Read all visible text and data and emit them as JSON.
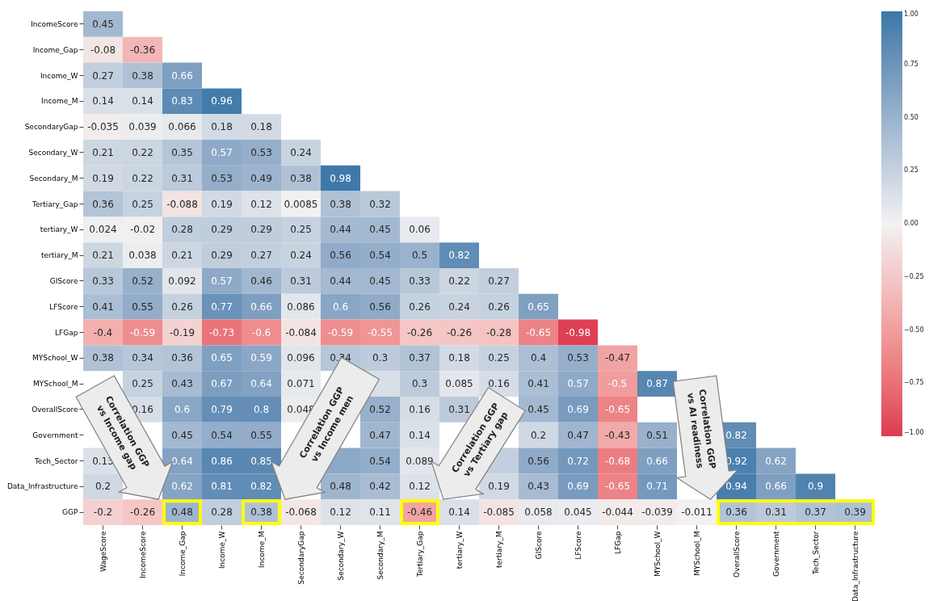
{
  "chart_data": {
    "type": "heatmap",
    "categories": [
      "WageScore",
      "IncomeScore",
      "Income_Gap",
      "Income_W",
      "Income_M",
      "SecondaryGap",
      "Secondary_W",
      "Secondary_M",
      "Tertiary_Gap",
      "tertiary_W",
      "tertiary_M",
      "GIScore",
      "LFScore",
      "LFGap",
      "MYSchool_W",
      "MYSchool_M",
      "OverallScore",
      "Government",
      "Tech_Sector",
      "Data_Infrastructure"
    ],
    "y_categories": [
      "IncomeScore",
      "Income_Gap",
      "Income_W",
      "Income_M",
      "SecondaryGap",
      "Secondary_W",
      "Secondary_M",
      "Tertiary_Gap",
      "tertiary_W",
      "tertiary_M",
      "GIScore",
      "LFScore",
      "LFGap",
      "MYSchool_W",
      "MYSchool_M",
      "OverallScore",
      "Government",
      "Tech_Sector",
      "Data_Infrastructure",
      "GGP"
    ],
    "cells": [
      [
        0.45,
        null,
        null,
        null,
        null,
        null,
        null,
        null,
        null,
        null,
        null,
        null,
        null,
        null,
        null,
        null,
        null,
        null,
        null,
        null
      ],
      [
        -0.08,
        -0.36,
        null,
        null,
        null,
        null,
        null,
        null,
        null,
        null,
        null,
        null,
        null,
        null,
        null,
        null,
        null,
        null,
        null,
        null
      ],
      [
        0.27,
        0.38,
        0.66,
        null,
        null,
        null,
        null,
        null,
        null,
        null,
        null,
        null,
        null,
        null,
        null,
        null,
        null,
        null,
        null,
        null
      ],
      [
        0.14,
        0.14,
        0.83,
        0.96,
        null,
        null,
        null,
        null,
        null,
        null,
        null,
        null,
        null,
        null,
        null,
        null,
        null,
        null,
        null,
        null
      ],
      [
        -0.035,
        0.039,
        0.066,
        0.18,
        0.18,
        null,
        null,
        null,
        null,
        null,
        null,
        null,
        null,
        null,
        null,
        null,
        null,
        null,
        null,
        null
      ],
      [
        0.21,
        0.22,
        0.35,
        0.57,
        0.53,
        0.24,
        null,
        null,
        null,
        null,
        null,
        null,
        null,
        null,
        null,
        null,
        null,
        null,
        null,
        null
      ],
      [
        0.19,
        0.22,
        0.31,
        0.53,
        0.49,
        0.38,
        0.98,
        null,
        null,
        null,
        null,
        null,
        null,
        null,
        null,
        null,
        null,
        null,
        null,
        null
      ],
      [
        0.36,
        0.25,
        -0.088,
        0.19,
        0.12,
        0.0085,
        0.38,
        0.32,
        null,
        null,
        null,
        null,
        null,
        null,
        null,
        null,
        null,
        null,
        null,
        null
      ],
      [
        0.024,
        -0.02,
        0.28,
        0.29,
        0.29,
        0.25,
        0.44,
        0.45,
        0.06,
        null,
        null,
        null,
        null,
        null,
        null,
        null,
        null,
        null,
        null,
        null
      ],
      [
        0.21,
        0.038,
        0.21,
        0.29,
        0.27,
        0.24,
        0.56,
        0.54,
        0.5,
        0.82,
        null,
        null,
        null,
        null,
        null,
        null,
        null,
        null,
        null,
        null
      ],
      [
        0.33,
        0.52,
        0.092,
        0.57,
        0.46,
        0.31,
        0.44,
        0.45,
        0.33,
        0.22,
        0.27,
        null,
        null,
        null,
        null,
        null,
        null,
        null,
        null,
        null
      ],
      [
        0.41,
        0.55,
        0.26,
        0.77,
        0.66,
        0.086,
        0.6,
        0.56,
        0.26,
        0.24,
        0.26,
        0.65,
        null,
        null,
        null,
        null,
        null,
        null,
        null,
        null
      ],
      [
        -0.4,
        -0.59,
        -0.19,
        -0.73,
        -0.6,
        -0.084,
        -0.59,
        -0.55,
        -0.26,
        -0.26,
        -0.28,
        -0.65,
        -0.98,
        null,
        null,
        null,
        null,
        null,
        null,
        null
      ],
      [
        0.38,
        0.34,
        0.36,
        0.65,
        0.59,
        0.096,
        0.34,
        0.3,
        0.37,
        0.18,
        0.25,
        0.4,
        0.53,
        -0.47,
        null,
        null,
        null,
        null,
        null,
        null
      ],
      [
        null,
        0.25,
        0.43,
        0.67,
        0.64,
        0.071,
        null,
        0.15,
        0.3,
        0.085,
        0.16,
        0.41,
        0.57,
        -0.5,
        0.87,
        null,
        null,
        null,
        null,
        null
      ],
      [
        null,
        0.16,
        0.6,
        0.79,
        0.8,
        0.048,
        null,
        0.52,
        0.16,
        0.31,
        null,
        0.45,
        0.69,
        -0.65,
        null,
        null,
        null,
        null,
        null,
        null
      ],
      [
        null,
        null,
        0.45,
        0.54,
        0.55,
        null,
        null,
        0.47,
        0.14,
        null,
        null,
        0.2,
        0.47,
        -0.43,
        0.51,
        null,
        0.82,
        null,
        null,
        null
      ],
      [
        0.13,
        null,
        0.64,
        0.86,
        0.85,
        null,
        0.58,
        0.54,
        0.089,
        null,
        0.27,
        0.56,
        0.72,
        -0.68,
        0.66,
        null,
        0.92,
        0.62,
        null,
        null
      ],
      [
        0.2,
        null,
        0.62,
        0.81,
        0.82,
        null,
        0.48,
        0.42,
        0.12,
        null,
        0.19,
        0.43,
        0.69,
        -0.65,
        0.71,
        null,
        0.94,
        0.66,
        0.9,
        null
      ],
      [
        -0.2,
        -0.26,
        0.48,
        0.28,
        0.38,
        -0.068,
        0.12,
        0.11,
        -0.46,
        0.14,
        -0.085,
        0.058,
        0.045,
        -0.044,
        -0.039,
        -0.011,
        0.36,
        0.31,
        0.37,
        0.39
      ]
    ],
    "cell_labels": [
      [
        "0.45",
        null,
        null,
        null,
        null,
        null,
        null,
        null,
        null,
        null,
        null,
        null,
        null,
        null,
        null,
        null,
        null,
        null,
        null,
        null
      ],
      [
        "-0.08",
        "-0.36",
        null,
        null,
        null,
        null,
        null,
        null,
        null,
        null,
        null,
        null,
        null,
        null,
        null,
        null,
        null,
        null,
        null,
        null
      ],
      [
        "0.27",
        "0.38",
        "0.66",
        null,
        null,
        null,
        null,
        null,
        null,
        null,
        null,
        null,
        null,
        null,
        null,
        null,
        null,
        null,
        null,
        null
      ],
      [
        "0.14",
        "0.14",
        "0.83",
        "0.96",
        null,
        null,
        null,
        null,
        null,
        null,
        null,
        null,
        null,
        null,
        null,
        null,
        null,
        null,
        null,
        null
      ],
      [
        "-0.035",
        "0.039",
        "0.066",
        "0.18",
        "0.18",
        null,
        null,
        null,
        null,
        null,
        null,
        null,
        null,
        null,
        null,
        null,
        null,
        null,
        null,
        null
      ],
      [
        "0.21",
        "0.22",
        "0.35",
        "0.57",
        "0.53",
        "0.24",
        null,
        null,
        null,
        null,
        null,
        null,
        null,
        null,
        null,
        null,
        null,
        null,
        null,
        null
      ],
      [
        "0.19",
        "0.22",
        "0.31",
        "0.53",
        "0.49",
        "0.38",
        "0.98",
        null,
        null,
        null,
        null,
        null,
        null,
        null,
        null,
        null,
        null,
        null,
        null,
        null
      ],
      [
        "0.36",
        "0.25",
        "-0.088",
        "0.19",
        "0.12",
        "0.0085",
        "0.38",
        "0.32",
        null,
        null,
        null,
        null,
        null,
        null,
        null,
        null,
        null,
        null,
        null,
        null
      ],
      [
        "0.024",
        "-0.02",
        "0.28",
        "0.29",
        "0.29",
        "0.25",
        "0.44",
        "0.45",
        "0.06",
        null,
        null,
        null,
        null,
        null,
        null,
        null,
        null,
        null,
        null,
        null
      ],
      [
        "0.21",
        "0.038",
        "0.21",
        "0.29",
        "0.27",
        "0.24",
        "0.56",
        "0.54",
        "0.5",
        "0.82",
        null,
        null,
        null,
        null,
        null,
        null,
        null,
        null,
        null,
        null
      ],
      [
        "0.33",
        "0.52",
        "0.092",
        "0.57",
        "0.46",
        "0.31",
        "0.44",
        "0.45",
        "0.33",
        "0.22",
        "0.27",
        null,
        null,
        null,
        null,
        null,
        null,
        null,
        null,
        null
      ],
      [
        "0.41",
        "0.55",
        "0.26",
        "0.77",
        "0.66",
        "0.086",
        "0.6",
        "0.56",
        "0.26",
        "0.24",
        "0.26",
        "0.65",
        null,
        null,
        null,
        null,
        null,
        null,
        null,
        null
      ],
      [
        "-0.4",
        "-0.59",
        "-0.19",
        "-0.73",
        "-0.6",
        "-0.084",
        "-0.59",
        "-0.55",
        "-0.26",
        "-0.26",
        "-0.28",
        "-0.65",
        "-0.98",
        null,
        null,
        null,
        null,
        null,
        null,
        null
      ],
      [
        "0.38",
        "0.34",
        "0.36",
        "0.65",
        "0.59",
        "0.096",
        "0.34",
        "0.3",
        "0.37",
        "0.18",
        "0.25",
        "0.4",
        "0.53",
        "-0.47",
        null,
        null,
        null,
        null,
        null,
        null
      ],
      [
        null,
        "0.25",
        "0.43",
        "0.67",
        "0.64",
        "0.071",
        null,
        null,
        "0.3",
        "0.085",
        "0.16",
        "0.41",
        "0.57",
        "-0.5",
        "0.87",
        null,
        null,
        null,
        null,
        null
      ],
      [
        null,
        "0.16",
        "0.6",
        "0.79",
        "0.8",
        "0.048",
        null,
        "0.52",
        "0.16",
        "0.31",
        null,
        "0.45",
        "0.69",
        "-0.65",
        null,
        null,
        null,
        null,
        null,
        null
      ],
      [
        null,
        null,
        "0.45",
        "0.54",
        "0.55",
        null,
        null,
        "0.47",
        "0.14",
        null,
        null,
        "0.2",
        "0.47",
        "-0.43",
        "0.51",
        null,
        "0.82",
        null,
        null,
        null
      ],
      [
        "0.13",
        null,
        "0.64",
        "0.86",
        "0.85",
        null,
        null,
        "0.54",
        "0.089",
        null,
        null,
        "0.56",
        "0.72",
        "-0.68",
        "0.66",
        null,
        "0.92",
        "0.62",
        null,
        null
      ],
      [
        "0.2",
        null,
        "0.62",
        "0.81",
        "0.82",
        null,
        "0.48",
        "0.42",
        "0.12",
        null,
        "0.19",
        "0.43",
        "0.69",
        "-0.65",
        "0.71",
        null,
        "0.94",
        "0.66",
        "0.9",
        null
      ],
      [
        "-0.2",
        "-0.26",
        "0.48",
        "0.28",
        "0.38",
        "-0.068",
        "0.12",
        "0.11",
        "-0.46",
        "0.14",
        "-0.085",
        "0.058",
        "0.045",
        "-0.044",
        "-0.039",
        "-0.011",
        "0.36",
        "0.31",
        "0.37",
        "0.39"
      ]
    ],
    "clim": [
      -1,
      1
    ],
    "cticks": [
      {
        "value": -1,
        "label": "−1.00"
      },
      {
        "value": -0.75,
        "label": "−0.75"
      },
      {
        "value": -0.5,
        "label": "−0.50"
      },
      {
        "value": -0.25,
        "label": "−0.25"
      },
      {
        "value": 0,
        "label": "0.00"
      },
      {
        "value": 0.25,
        "label": "0.25"
      },
      {
        "value": 0.5,
        "label": "0.50"
      },
      {
        "value": 0.75,
        "label": "0.75"
      },
      {
        "value": 1,
        "label": "1.00"
      }
    ],
    "data_labels": true,
    "annotations": [
      "Correlation GGP vs Income gap",
      "Correlation GGP vs Income men",
      "Correlation GGP vs Tertiary gap",
      "Correlation GGP vs AI readiness"
    ]
  }
}
